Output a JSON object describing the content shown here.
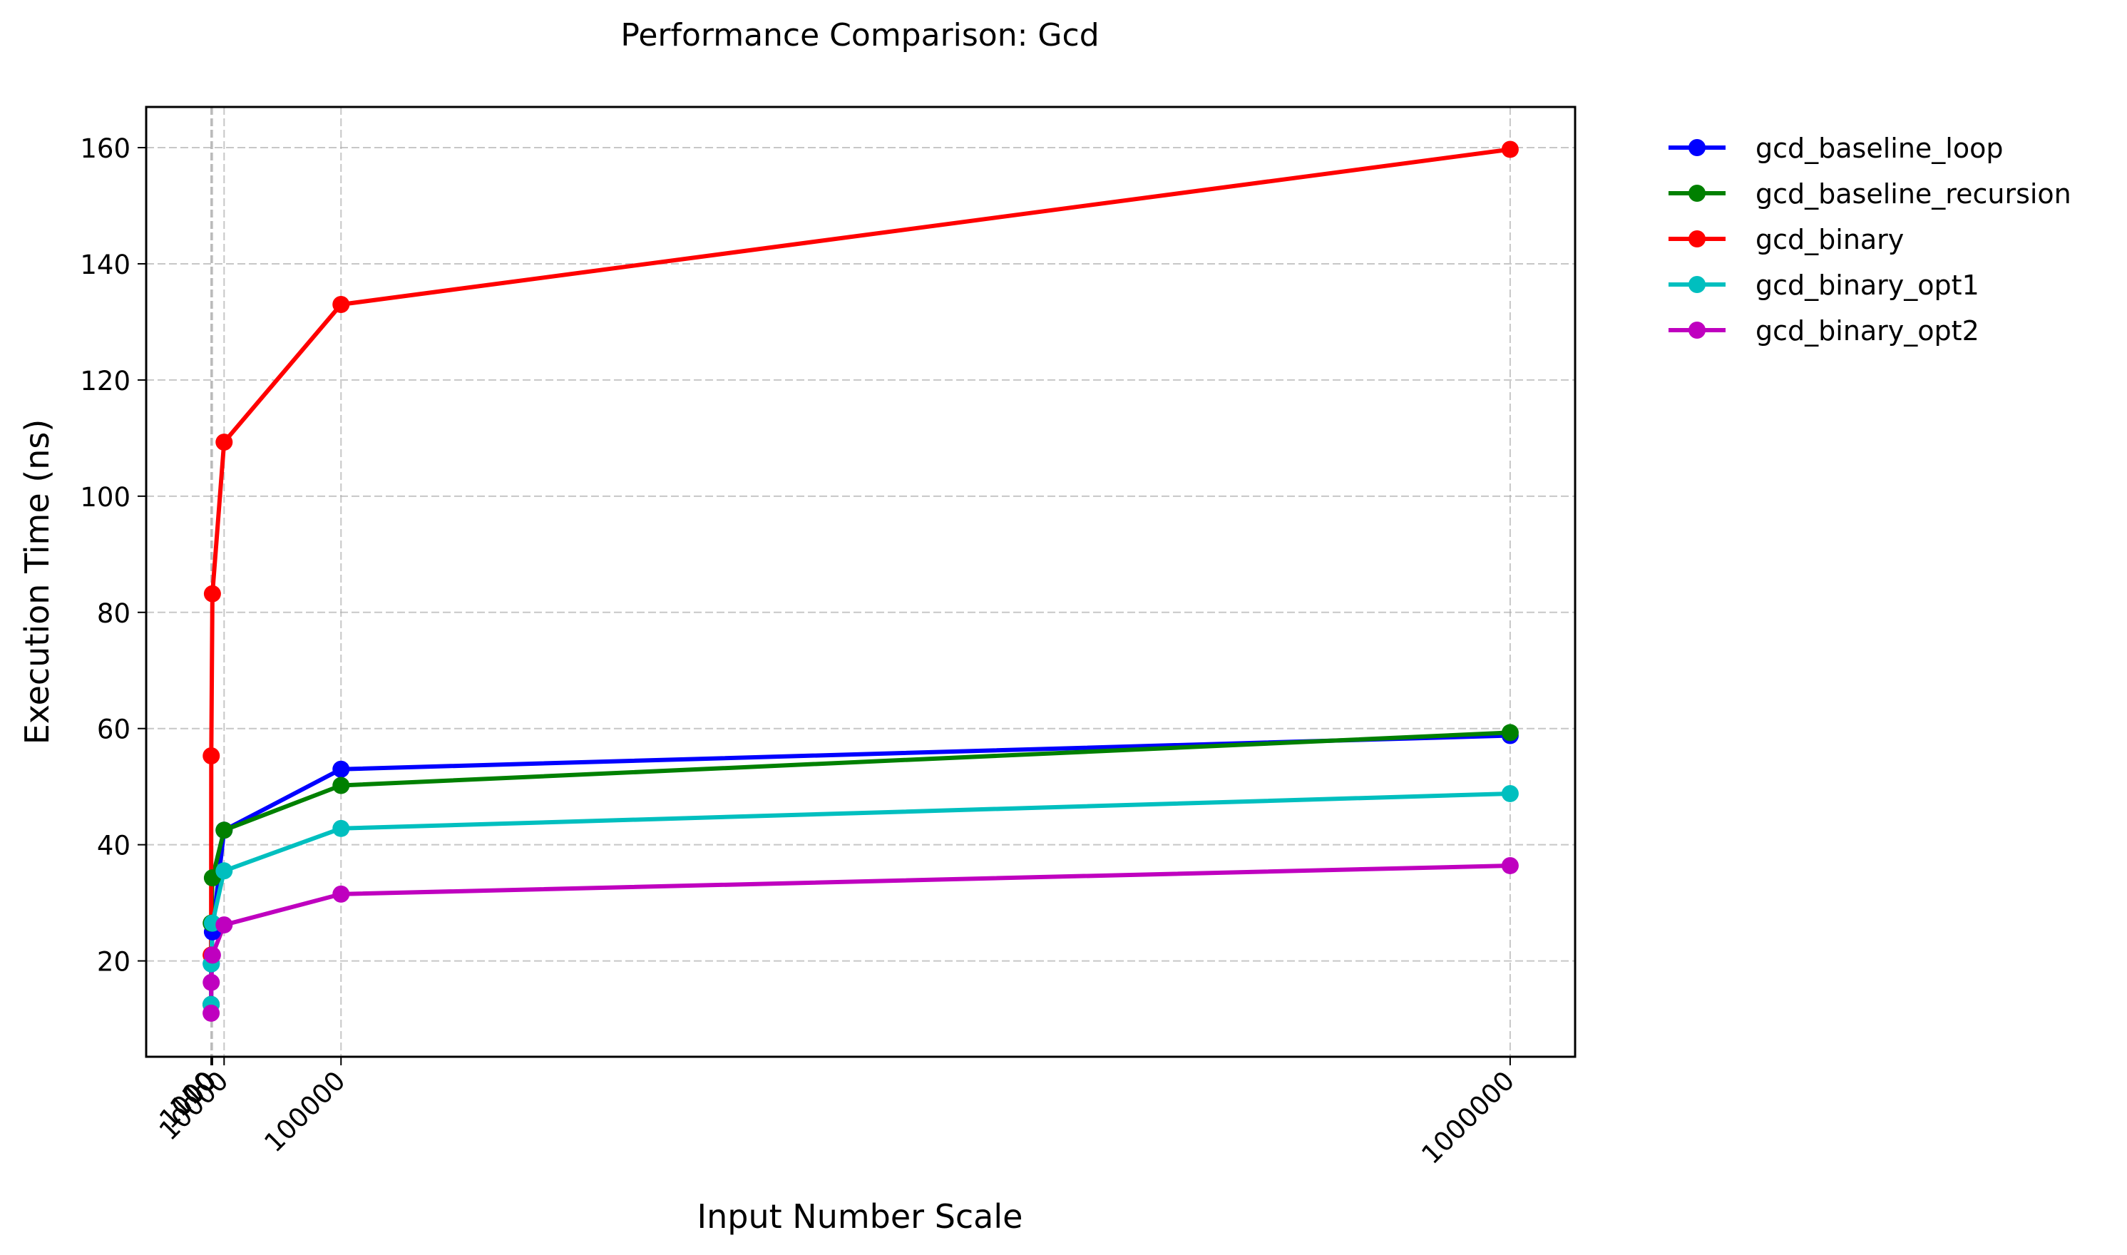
{
  "chart_data": {
    "type": "line",
    "title": "Performance Comparison: Gcd",
    "xlabel": "Input Number Scale",
    "ylabel": "Execution Time (ns)",
    "x": [
      10,
      100,
      1000,
      10000,
      100000,
      1000000
    ],
    "xticks": [
      10,
      100,
      1000,
      10000,
      100000,
      1000000
    ],
    "xtick_labels": [
      "10",
      "100",
      "1000",
      "10000",
      "100000",
      "1000000"
    ],
    "xlim": [
      -49990,
      1050000
    ],
    "yticks": [
      20,
      40,
      60,
      80,
      100,
      120,
      140,
      160
    ],
    "ylim": [
      3.5,
      167
    ],
    "grid": true,
    "legend_position": "outside right, top",
    "series": [
      {
        "name": "gcd_baseline_loop",
        "color": "#0000ff",
        "values": [
          12.5,
          19.5,
          25.0,
          42.5,
          53.0,
          58.8
        ]
      },
      {
        "name": "gcd_baseline_recursion",
        "color": "#008000",
        "values": [
          12.5,
          26.5,
          34.3,
          42.5,
          50.2,
          59.3
        ]
      },
      {
        "name": "gcd_binary",
        "color": "#ff0000",
        "values": [
          21.0,
          55.3,
          83.2,
          109.3,
          133.0,
          159.7
        ]
      },
      {
        "name": "gcd_binary_opt1",
        "color": "#00bfbf",
        "values": [
          12.5,
          19.5,
          26.5,
          35.5,
          42.8,
          48.8
        ]
      },
      {
        "name": "gcd_binary_opt2",
        "color": "#bf00bf",
        "values": [
          11.0,
          16.3,
          21.0,
          26.2,
          31.5,
          36.4
        ]
      }
    ]
  }
}
